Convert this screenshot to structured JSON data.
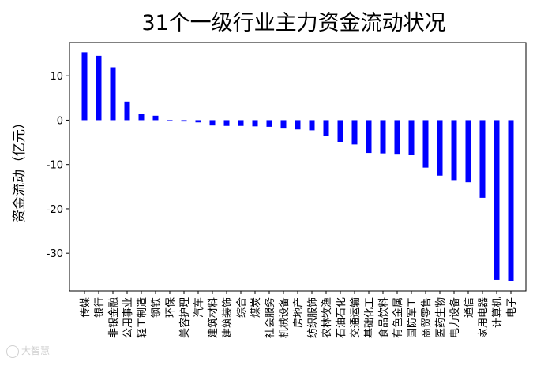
{
  "chart_data": {
    "type": "bar",
    "title": "31个一级行业主力资金流动状况",
    "xlabel": "",
    "ylabel": "资金流动（亿元）",
    "ylim": [
      -38.5,
      17.5
    ],
    "yticks": [
      10,
      0,
      -10,
      -20,
      -30
    ],
    "bar_color": "#0000ff",
    "grid": false,
    "categories": [
      "传媒",
      "银行",
      "非银金融",
      "公用事业",
      "轻工制造",
      "钢铁",
      "环保",
      "美容护理",
      "汽车",
      "建筑材料",
      "建筑装饰",
      "综合",
      "煤炭",
      "社会服务",
      "机械设备",
      "房地产",
      "纺织服饰",
      "农林牧渔",
      "石油石化",
      "交通运输",
      "基础化工",
      "食品饮料",
      "有色金属",
      "国防军工",
      "商贸零售",
      "医药生物",
      "电力设备",
      "通信",
      "家用电器",
      "计算机",
      "电子"
    ],
    "values": [
      15.3,
      14.5,
      11.9,
      4.2,
      1.4,
      1.0,
      -0.1,
      -0.3,
      -0.5,
      -1.2,
      -1.3,
      -1.3,
      -1.4,
      -1.5,
      -1.9,
      -2.1,
      -2.3,
      -3.5,
      -4.9,
      -5.5,
      -7.4,
      -7.5,
      -7.6,
      -7.9,
      -10.7,
      -12.5,
      -13.5,
      -14.0,
      -17.5,
      -36.0,
      -36.2
    ]
  },
  "watermark": {
    "text": "大智慧"
  }
}
